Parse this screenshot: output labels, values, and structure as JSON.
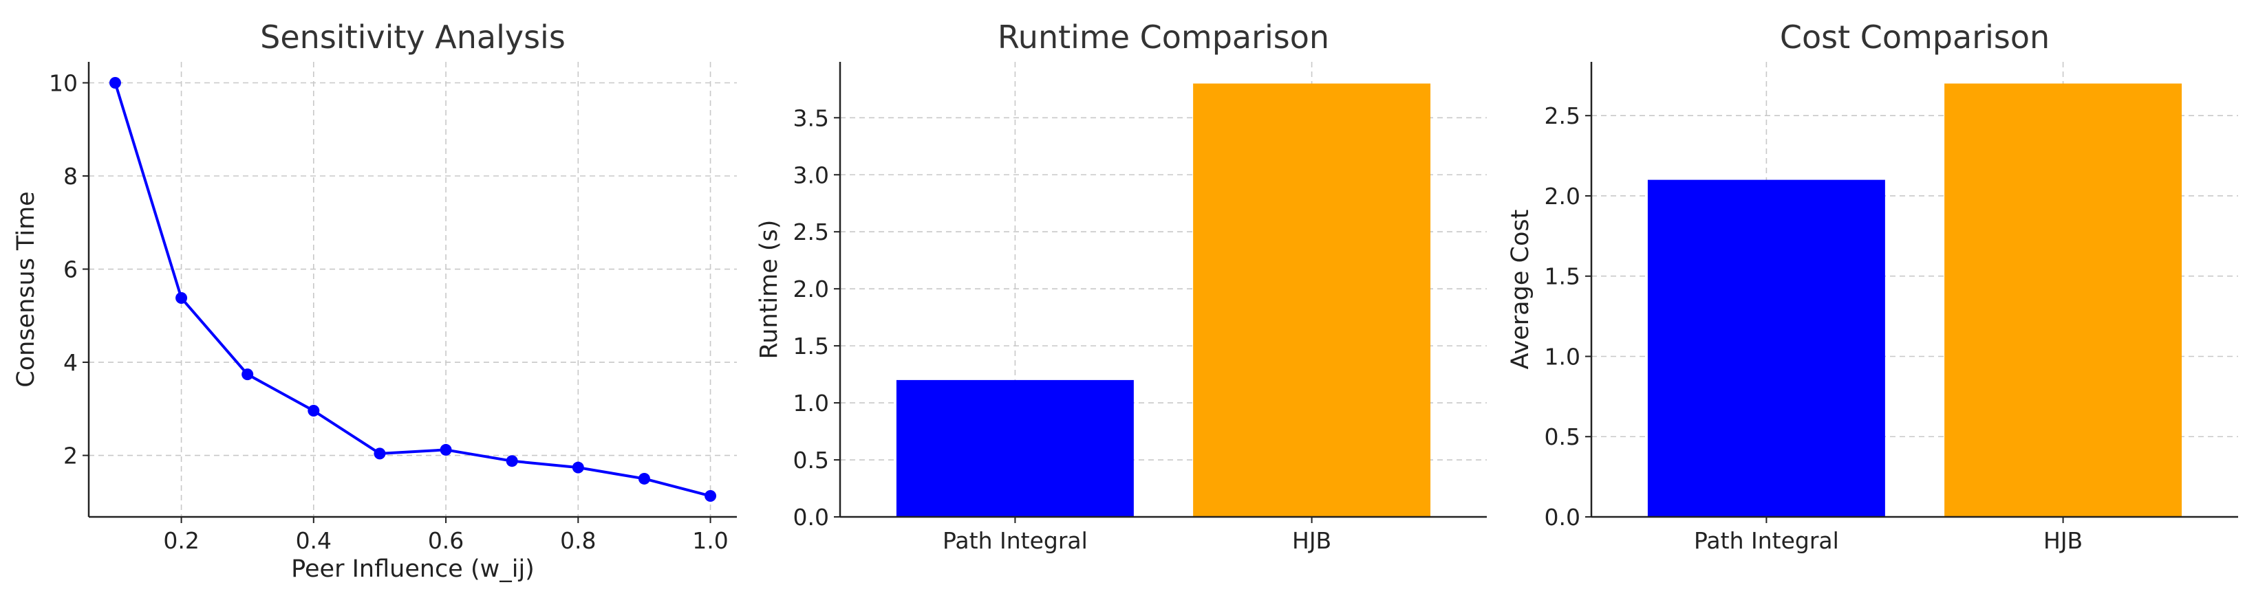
{
  "chart_data": [
    {
      "type": "line",
      "title": "Sensitivity Analysis",
      "xlabel": "Peer Influence (w_ij)",
      "ylabel": "Consensus Time",
      "x": [
        0.1,
        0.2,
        0.3,
        0.4,
        0.5,
        0.6,
        0.7,
        0.8,
        0.9,
        1.0
      ],
      "series": [
        {
          "values": [
            10.0,
            5.38,
            3.74,
            2.96,
            2.04,
            2.12,
            1.88,
            1.74,
            1.5,
            1.13
          ],
          "color": "#0000ff"
        }
      ],
      "xlim": [
        0.06,
        1.04
      ],
      "ylim": [
        0.68,
        10.45
      ],
      "xticks": [
        0.2,
        0.4,
        0.6,
        0.8,
        1.0
      ],
      "xtick_labels": [
        "0.2",
        "0.4",
        "0.6",
        "0.8",
        "1.0"
      ],
      "yticks": [
        2,
        4,
        6,
        8,
        10
      ],
      "ytick_labels": [
        "2",
        "4",
        "6",
        "8",
        "10"
      ],
      "grid": true
    },
    {
      "type": "bar",
      "title": "Runtime Comparison",
      "xlabel": "",
      "ylabel": "Runtime (s)",
      "categories": [
        "Path Integral",
        "HJB"
      ],
      "values": [
        1.2,
        3.8
      ],
      "colors": [
        "#0000ff",
        "#ffa500"
      ],
      "ylim": [
        0,
        3.99
      ],
      "yticks": [
        0,
        0.5,
        1.0,
        1.5,
        2.0,
        2.5,
        3.0,
        3.5
      ],
      "ytick_labels": [
        "0.0",
        "0.5",
        "1.0",
        "1.5",
        "2.0",
        "2.5",
        "3.0",
        "3.5"
      ],
      "grid": true
    },
    {
      "type": "bar",
      "title": "Cost Comparison",
      "xlabel": "",
      "ylabel": "Average Cost",
      "categories": [
        "Path Integral",
        "HJB"
      ],
      "values": [
        2.1,
        2.7
      ],
      "colors": [
        "#0000ff",
        "#ffa500"
      ],
      "ylim": [
        0,
        2.835
      ],
      "yticks": [
        0,
        0.5,
        1.0,
        1.5,
        2.0,
        2.5
      ],
      "ytick_labels": [
        "0.0",
        "0.5",
        "1.0",
        "1.5",
        "2.0",
        "2.5"
      ],
      "grid": true
    }
  ]
}
